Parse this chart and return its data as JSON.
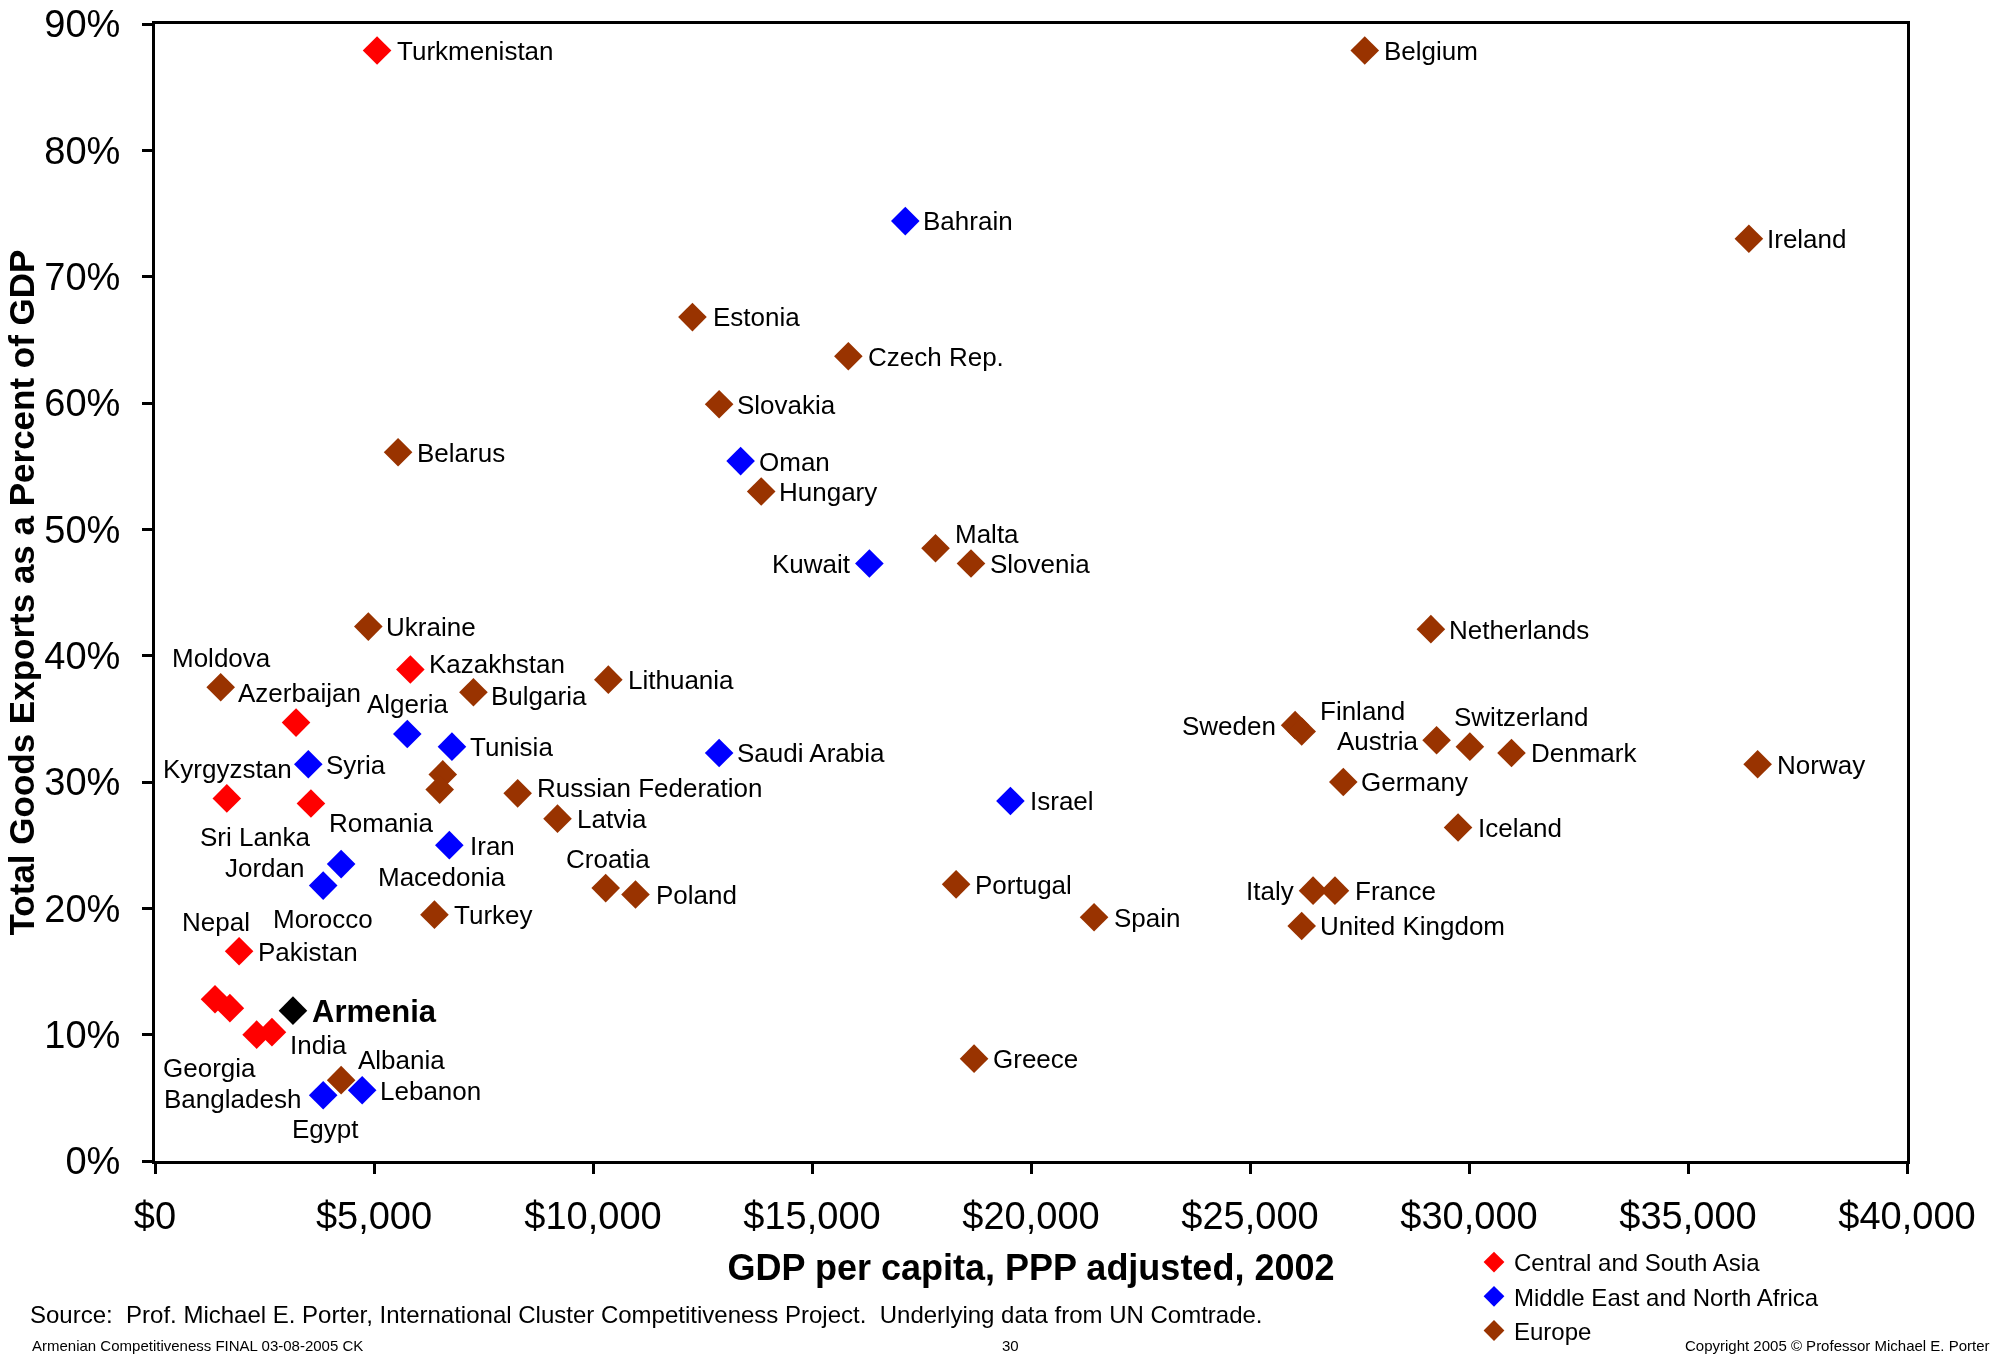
{
  "chart_data": {
    "type": "scatter",
    "xlabel": "GDP per capita, PPP adjusted, 2002",
    "ylabel": "Total Goods Exports as a Percent of GDP",
    "xlim": [
      0,
      40000
    ],
    "xticks": [
      {
        "value": 0,
        "label": "$0"
      },
      {
        "value": 5000,
        "label": "$5,000"
      },
      {
        "value": 10000,
        "label": "$10,000"
      },
      {
        "value": 15000,
        "label": "$15,000"
      },
      {
        "value": 20000,
        "label": "$20,000"
      },
      {
        "value": 25000,
        "label": "$25,000"
      },
      {
        "value": 30000,
        "label": "$30,000"
      },
      {
        "value": 35000,
        "label": "$35,000"
      },
      {
        "value": 40000,
        "label": "$40,000"
      }
    ],
    "ylim": [
      0,
      90
    ],
    "yticks": [
      {
        "value": 0,
        "label": "0%"
      },
      {
        "value": 10,
        "label": "10%"
      },
      {
        "value": 20,
        "label": "20%"
      },
      {
        "value": 30,
        "label": "30%"
      },
      {
        "value": 40,
        "label": "40%"
      },
      {
        "value": 50,
        "label": "50%"
      },
      {
        "value": 60,
        "label": "60%"
      },
      {
        "value": 70,
        "label": "70%"
      },
      {
        "value": 80,
        "label": "80%"
      },
      {
        "value": 90,
        "label": "90%"
      }
    ],
    "legend": "bottom right",
    "marker": "diamond",
    "series": [
      {
        "name": "Central and South Asia",
        "color": "#ff0000",
        "x": [
          5070,
          5830,
          3220,
          1640,
          3560,
          1920,
          1370,
          1710,
          2320,
          2670
        ],
        "values": [
          87.9,
          38.9,
          34.7,
          28.7,
          28.3,
          16.6,
          12.8,
          12.1,
          10.0,
          10.2
        ]
      },
      {
        "name": "Middle East and North Africa",
        "color": "#0000ff",
        "x": [
          17130,
          13370,
          16310,
          12880,
          19530,
          5760,
          6780,
          3500,
          6720,
          4250,
          3840,
          3840,
          4730
        ],
        "values": [
          74.4,
          55.4,
          47.3,
          32.3,
          28.5,
          33.8,
          32.8,
          31.4,
          25.0,
          23.5,
          21.8,
          5.2,
          5.6
        ]
      },
      {
        "name": "Europe",
        "color": "#993300",
        "x": [
          27620,
          36390,
          12270,
          15830,
          12880,
          5550,
          13840,
          17820,
          18630,
          4870,
          29130,
          1500,
          10350,
          7270,
          26030,
          26180,
          29260,
          30020,
          30970,
          36590,
          6570,
          6500,
          8280,
          27130,
          9190,
          29750,
          18290,
          10290,
          10970,
          26440,
          26940,
          6380,
          21440,
          26180,
          18700,
          4250
        ],
        "values": [
          87.9,
          73.0,
          66.8,
          63.7,
          59.9,
          56.1,
          53.0,
          48.5,
          47.3,
          42.3,
          42.1,
          37.5,
          38.1,
          37.1,
          34.5,
          34.0,
          33.3,
          32.8,
          32.3,
          31.4,
          30.6,
          29.4,
          29.1,
          30.0,
          27.1,
          26.4,
          21.9,
          21.6,
          21.1,
          21.4,
          21.4,
          19.5,
          19.3,
          18.6,
          8.1,
          6.4
        ]
      },
      {
        "name": "Armenia",
        "color": "#000000",
        "x": [
          3150
        ],
        "values": [
          11.9
        ]
      }
    ],
    "annotations": [
      {
        "text": "Turkmenistan",
        "x": 5070,
        "y": 87.9
      },
      {
        "text": "Kazakhstan",
        "x": 5830,
        "y": 38.9
      },
      {
        "text": "Azerbaijan",
        "x": 3220,
        "y": 34.7
      },
      {
        "text": "Kyrgyzstan",
        "x": 1640,
        "y": 28.7
      },
      {
        "text": "Sri Lanka",
        "x": 3560,
        "y": 28.3
      },
      {
        "text": "Pakistan",
        "x": 1920,
        "y": 16.6
      },
      {
        "text": "Nepal",
        "x": 1370,
        "y": 12.8
      },
      {
        "text": "Bangladesh",
        "x": 1710,
        "y": 12.1
      },
      {
        "text": "Georgia",
        "x": 2320,
        "y": 10.0
      },
      {
        "text": "India",
        "x": 2670,
        "y": 10.2
      },
      {
        "text": "Bahrain",
        "x": 17130,
        "y": 74.4
      },
      {
        "text": "Oman",
        "x": 13370,
        "y": 55.4
      },
      {
        "text": "Kuwait",
        "x": 16310,
        "y": 47.3
      },
      {
        "text": "Saudi Arabia",
        "x": 12880,
        "y": 32.3
      },
      {
        "text": "Israel",
        "x": 19530,
        "y": 28.5
      },
      {
        "text": "Algeria",
        "x": 5760,
        "y": 33.8
      },
      {
        "text": "Tunisia",
        "x": 6780,
        "y": 32.8
      },
      {
        "text": "Syria",
        "x": 3500,
        "y": 31.4
      },
      {
        "text": "Iran",
        "x": 6720,
        "y": 25.0
      },
      {
        "text": "Jordan",
        "x": 4250,
        "y": 23.5
      },
      {
        "text": "Morocco",
        "x": 3840,
        "y": 21.8
      },
      {
        "text": "Egypt",
        "x": 3840,
        "y": 5.2
      },
      {
        "text": "Lebanon",
        "x": 4730,
        "y": 5.6
      },
      {
        "text": "Belgium",
        "x": 27620,
        "y": 87.9
      },
      {
        "text": "Ireland",
        "x": 36390,
        "y": 73.0
      },
      {
        "text": "Estonia",
        "x": 12270,
        "y": 66.8
      },
      {
        "text": "Czech Rep.",
        "x": 15830,
        "y": 63.7
      },
      {
        "text": "Slovakia",
        "x": 12880,
        "y": 59.9
      },
      {
        "text": "Belarus",
        "x": 5550,
        "y": 56.1
      },
      {
        "text": "Hungary",
        "x": 13840,
        "y": 53.0
      },
      {
        "text": "Malta",
        "x": 17820,
        "y": 48.5
      },
      {
        "text": "Slovenia",
        "x": 18630,
        "y": 47.3
      },
      {
        "text": "Ukraine",
        "x": 4870,
        "y": 42.3
      },
      {
        "text": "Netherlands",
        "x": 29130,
        "y": 42.1
      },
      {
        "text": "Moldova",
        "x": 1500,
        "y": 37.5
      },
      {
        "text": "Lithuania",
        "x": 10350,
        "y": 38.1
      },
      {
        "text": "Bulgaria",
        "x": 7270,
        "y": 37.1
      },
      {
        "text": "Sweden",
        "x": 26030,
        "y": 34.5
      },
      {
        "text": "Finland",
        "x": 26180,
        "y": 34.0
      },
      {
        "text": "Austria",
        "x": 29260,
        "y": 33.3
      },
      {
        "text": "Switzerland",
        "x": 30020,
        "y": 32.8
      },
      {
        "text": "Denmark",
        "x": 30970,
        "y": 32.3
      },
      {
        "text": "Norway",
        "x": 36590,
        "y": 31.4
      },
      {
        "text": "Romania",
        "x": 6570,
        "y": 30.6
      },
      {
        "text": "Macedonia",
        "x": 6500,
        "y": 29.4
      },
      {
        "text": "Russian Federation",
        "x": 8280,
        "y": 29.1
      },
      {
        "text": "Germany",
        "x": 27130,
        "y": 30.0
      },
      {
        "text": "Latvia",
        "x": 9190,
        "y": 27.1
      },
      {
        "text": "Iceland",
        "x": 29750,
        "y": 26.4
      },
      {
        "text": "Portugal",
        "x": 18290,
        "y": 21.9
      },
      {
        "text": "Croatia",
        "x": 10290,
        "y": 21.6
      },
      {
        "text": "Poland",
        "x": 10970,
        "y": 21.1
      },
      {
        "text": "Italy",
        "x": 26440,
        "y": 21.4
      },
      {
        "text": "France",
        "x": 26940,
        "y": 21.4
      },
      {
        "text": "Turkey",
        "x": 6380,
        "y": 19.5
      },
      {
        "text": "Spain",
        "x": 21440,
        "y": 19.3
      },
      {
        "text": "United Kingdom",
        "x": 26180,
        "y": 18.6
      },
      {
        "text": "Greece",
        "x": 18700,
        "y": 8.1
      },
      {
        "text": "Albania",
        "x": 4250,
        "y": 6.4
      },
      "Source:  Prof. Michael E. Porter, International Cluster Competitiveness Project.  Underlying data from UN Comtrade.",
      "Armenian Competitiveness FINAL 03-08-2005 CK",
      "30",
      "Copyright 2005 © Professor Michael E. Porter"
    ]
  }
}
